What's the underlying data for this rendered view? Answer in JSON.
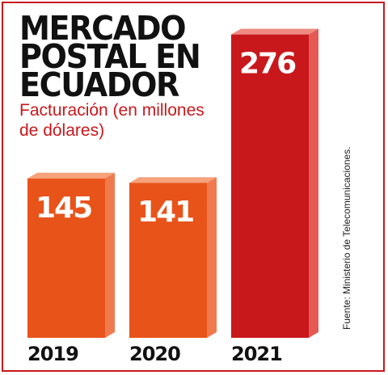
{
  "chart_data": {
    "type": "bar",
    "title": "MERCADO POSTAL EN ECUADOR",
    "subtitle": "Facturación (en millones de dólares)",
    "categories": [
      "2019",
      "2020",
      "2021"
    ],
    "values": [
      145,
      141,
      276
    ],
    "value_labels": [
      "145",
      "141",
      "276"
    ],
    "source": "Fuente: Ministerio de Telecomunicaciones.",
    "colors": {
      "orange_front": "#e8531a",
      "orange_top": "#f6a27a",
      "orange_side": "#f07a4e",
      "red_front": "#c8181c",
      "red_top": "#ee8a80",
      "red_side": "#e45a52",
      "frame": "#c8181c"
    },
    "bar_colors": [
      "orange",
      "orange",
      "red"
    ],
    "legend": "none",
    "grid": false
  }
}
